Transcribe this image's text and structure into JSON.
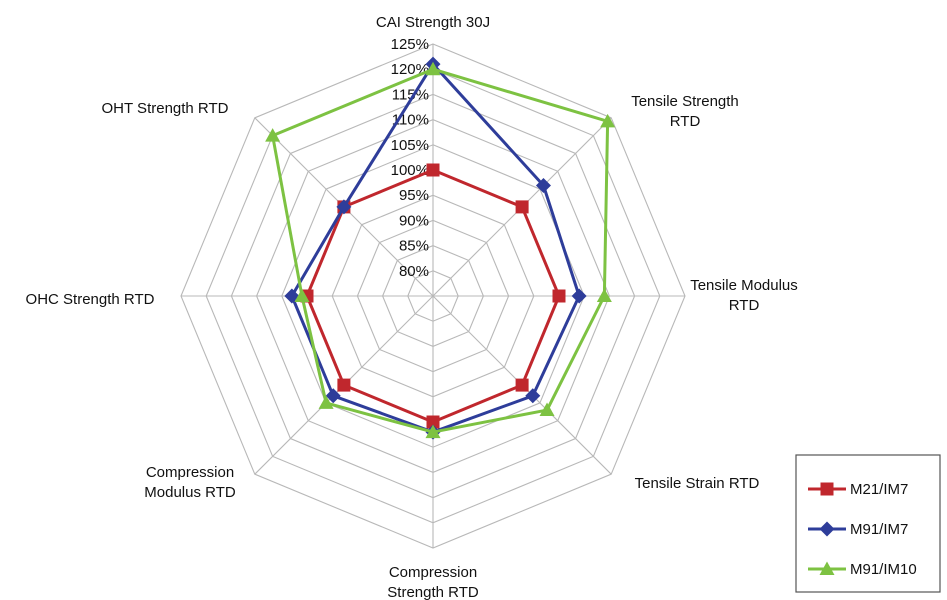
{
  "chart_data": {
    "type": "radar",
    "axes": [
      "CAI Strength 30J",
      "Tensile Strength RTD",
      "Tensile Modulus RTD",
      "Tensile Strain RTD",
      "Compression Strength RTD",
      "Compression Modulus RTD",
      "OHC Strength RTD",
      "OHT Strength RTD"
    ],
    "axis_label_lines": [
      [
        "CAI Strength 30J"
      ],
      [
        "Tensile Strength",
        "RTD"
      ],
      [
        "Tensile Modulus",
        "RTD"
      ],
      [
        "Tensile Strain RTD"
      ],
      [
        "Compression",
        "Strength RTD"
      ],
      [
        "Compression",
        "Modulus RTD"
      ],
      [
        "OHC Strength RTD"
      ],
      [
        "OHT Strength RTD"
      ]
    ],
    "ticks": [
      "80%",
      "85%",
      "90%",
      "95%",
      "100%",
      "105%",
      "110%",
      "115%",
      "120%",
      "125%"
    ],
    "r_min": 75,
    "r_max": 125,
    "grid": true,
    "legend_position": "bottom-right",
    "series": [
      {
        "name": "M21/IM7",
        "color": "#c0272d",
        "marker": "square",
        "values": [
          100,
          100,
          100,
          100,
          100,
          100,
          100,
          100
        ]
      },
      {
        "name": "M91/IM7",
        "color": "#2e3d9a",
        "marker": "diamond",
        "values": [
          121,
          106,
          104,
          103,
          102,
          103,
          103,
          100
        ]
      },
      {
        "name": "M91/IM10",
        "color": "#7dc242",
        "marker": "triangle",
        "values": [
          120,
          124,
          109,
          107,
          102,
          105,
          101,
          120
        ]
      }
    ]
  }
}
